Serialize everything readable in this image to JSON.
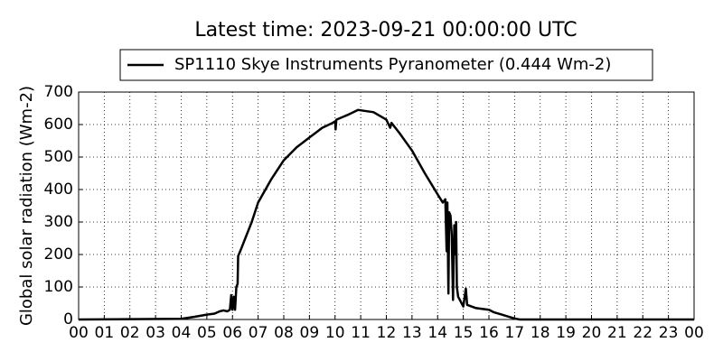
{
  "chart_data": {
    "type": "line",
    "title": "Latest time: 2023-09-21 00:00:00 UTC",
    "y_label": "Global solar radiation (Wm-2)",
    "grid": true,
    "legend": "top",
    "xlim": [
      0,
      24
    ],
    "ylim": [
      0,
      700
    ],
    "yticks": [
      0,
      100,
      200,
      300,
      400,
      500,
      600,
      700
    ],
    "xticks": [
      {
        "value": 0,
        "label": "00"
      },
      {
        "value": 1,
        "label": "01"
      },
      {
        "value": 2,
        "label": "02"
      },
      {
        "value": 3,
        "label": "03"
      },
      {
        "value": 4,
        "label": "04"
      },
      {
        "value": 5,
        "label": "05"
      },
      {
        "value": 6,
        "label": "06"
      },
      {
        "value": 7,
        "label": "07"
      },
      {
        "value": 8,
        "label": "08"
      },
      {
        "value": 9,
        "label": "09"
      },
      {
        "value": 10,
        "label": "10"
      },
      {
        "value": 11,
        "label": "11"
      },
      {
        "value": 12,
        "label": "12"
      },
      {
        "value": 13,
        "label": "13"
      },
      {
        "value": 14,
        "label": "14"
      },
      {
        "value": 15,
        "label": "15"
      },
      {
        "value": 16,
        "label": "16"
      },
      {
        "value": 17,
        "label": "17"
      },
      {
        "value": 18,
        "label": "18"
      },
      {
        "value": 19,
        "label": "19"
      },
      {
        "value": 20,
        "label": "20"
      },
      {
        "value": 21,
        "label": "21"
      },
      {
        "value": 22,
        "label": "22"
      },
      {
        "value": 23,
        "label": "23"
      },
      {
        "value": 24,
        "label": "00"
      }
    ],
    "x": [
      0,
      4,
      4.5,
      5,
      5.3,
      5.5,
      5.65,
      5.8,
      5.9,
      5.95,
      6,
      6.05,
      6.1,
      6.15,
      6.2,
      6.22,
      6.3,
      6.5,
      6.75,
      7,
      7.5,
      8,
      8.5,
      9,
      9.5,
      9.9,
      10,
      10.02,
      10.05,
      10.5,
      10.9,
      11.5,
      12,
      12.15,
      12.2,
      12.5,
      13,
      13.5,
      14,
      14.2,
      14.3,
      14.35,
      14.38,
      14.42,
      14.45,
      14.5,
      14.55,
      14.6,
      14.65,
      14.7,
      14.72,
      14.75,
      14.8,
      14.9,
      15,
      15.1,
      15.15,
      15.5,
      16,
      16.2,
      16.5,
      17,
      17.2,
      24
    ],
    "series": [
      {
        "name": "SP1110 Skye Instruments Pyranometer (0.444 Wm-2)",
        "color": "#000000",
        "values": [
          0,
          2,
          8,
          15,
          18,
          25,
          28,
          25,
          30,
          75,
          30,
          70,
          30,
          100,
          110,
          195,
          210,
          250,
          300,
          360,
          430,
          490,
          530,
          560,
          590,
          605,
          610,
          585,
          615,
          630,
          645,
          638,
          615,
          590,
          605,
          575,
          520,
          450,
          385,
          360,
          370,
          210,
          360,
          80,
          330,
          320,
          260,
          60,
          290,
          200,
          300,
          100,
          70,
          55,
          40,
          95,
          45,
          35,
          30,
          22,
          15,
          3,
          0,
          0
        ]
      }
    ]
  }
}
